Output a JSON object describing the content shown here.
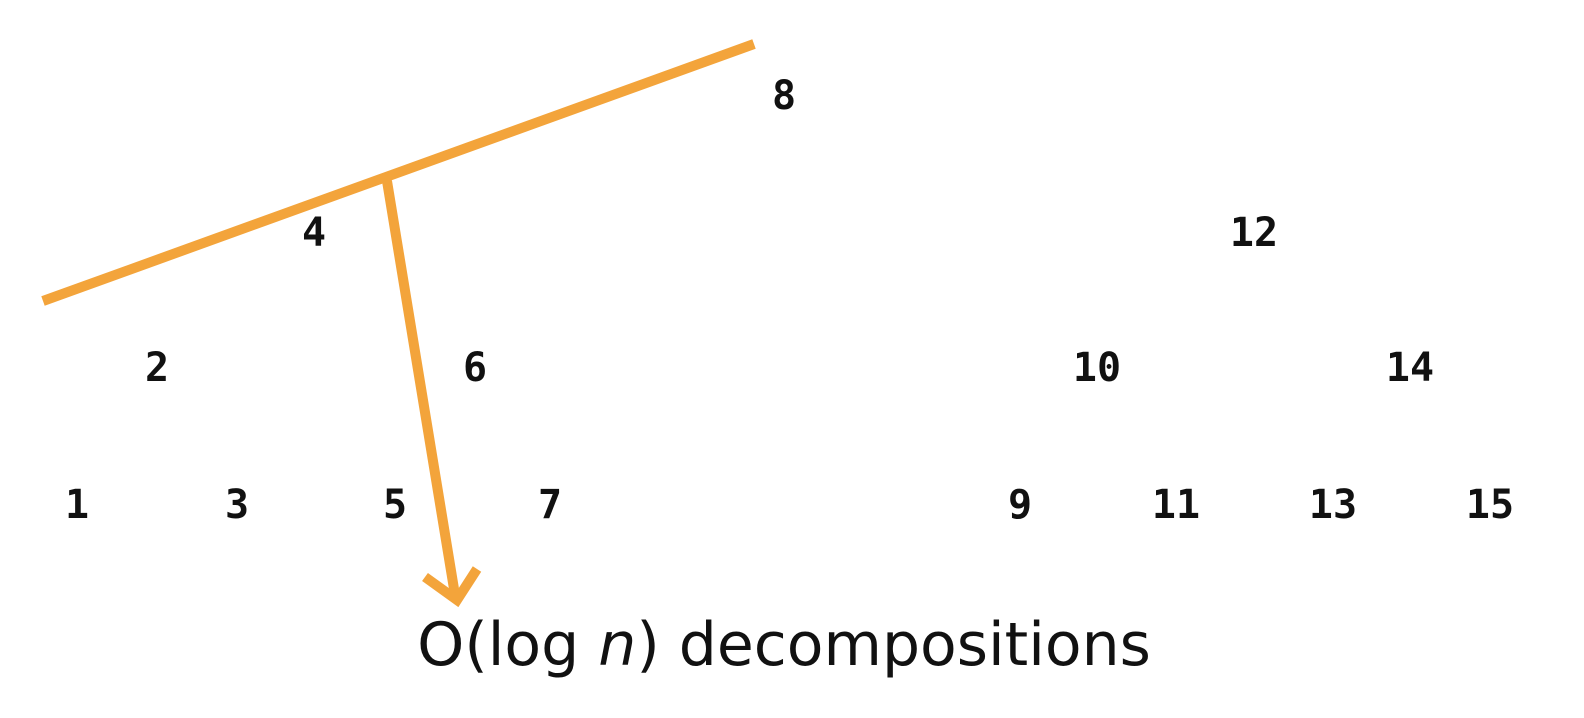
{
  "nodes": {
    "n1": "1",
    "n2": "2",
    "n3": "3",
    "n4": "4",
    "n5": "5",
    "n6": "6",
    "n7": "7",
    "n8": "8",
    "n9": "9",
    "n10": "10",
    "n11": "11",
    "n12": "12",
    "n13": "13",
    "n14": "14",
    "n15": "15"
  },
  "caption": {
    "prefix": "O(log ",
    "variable": "n",
    "suffix": ") decompositions"
  },
  "colors": {
    "accent": "#f3a43b",
    "text": "#111111"
  }
}
